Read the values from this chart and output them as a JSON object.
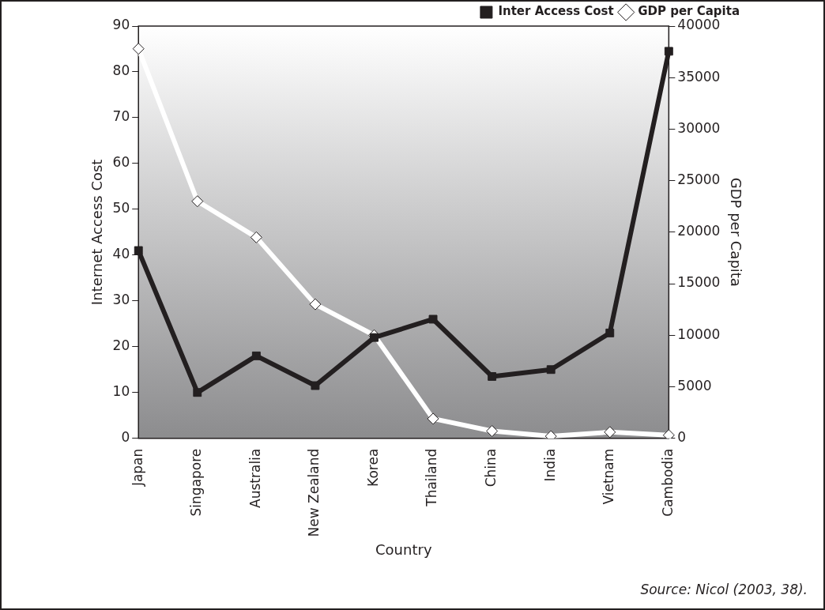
{
  "chart_data": {
    "type": "line",
    "categories": [
      "Japan",
      "Singapore",
      "Australia",
      "New Zealand",
      "Korea",
      "Thailand",
      "China",
      "India",
      "Vietnam",
      "Cambodia"
    ],
    "series": [
      {
        "name": "Inter Access Cost",
        "color": "#231f20",
        "marker": "square",
        "values": [
          41,
          10,
          18,
          11.5,
          22,
          26,
          13.5,
          15,
          23,
          84.5
        ]
      },
      {
        "name": "GDP per Capita",
        "color": "#ffffff",
        "marker": "diamond",
        "axis": "y2",
        "values": [
          37800,
          23000,
          19500,
          13000,
          10000,
          1900,
          700,
          200,
          600,
          300
        ]
      }
    ],
    "xlabel": "Country",
    "ylabel": "Internet Access Cost",
    "y2label": "GDP per Capita",
    "ylim": [
      0,
      90
    ],
    "yticks": [
      0,
      10,
      20,
      30,
      40,
      50,
      60,
      70,
      80,
      90
    ],
    "y2lim": [
      0,
      40000
    ],
    "y2ticks": [
      0,
      5000,
      10000,
      15000,
      20000,
      25000,
      30000,
      35000,
      40000
    ],
    "grid": false,
    "legend": "top right",
    "line_style": "solid",
    "annotations": [
      "Source: Nicol (2003, 38)."
    ]
  }
}
